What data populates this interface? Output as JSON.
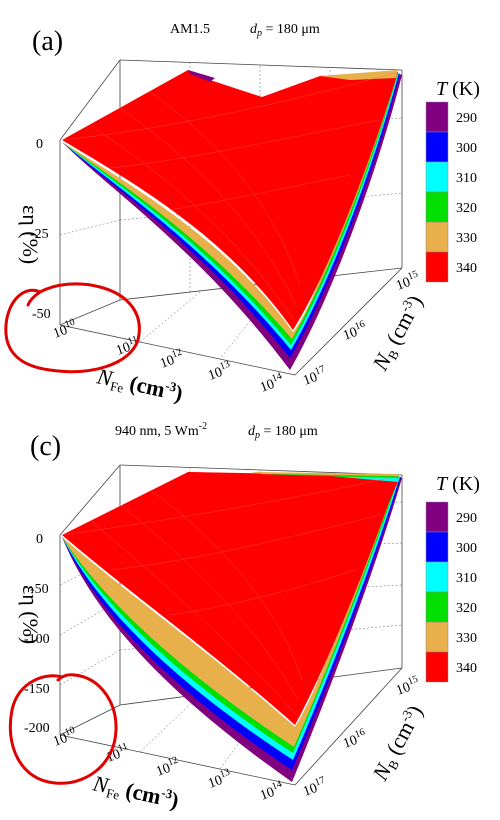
{
  "panels": [
    {
      "label": "(a)",
      "condition": "AM1.5",
      "thickness_symbol": "d",
      "thickness_sub": "p",
      "thickness_rest": " = 180 μm",
      "zlabel_parts": [
        "ε",
        "η",
        " (%)"
      ],
      "xlabel": {
        "main": "N",
        "sub": "Fe",
        "unit": " (cm",
        "exp": "-3",
        "close": ")"
      },
      "ylabel": {
        "main": "N",
        "sub": "B",
        "unit": " (cm",
        "exp": "-3",
        "close": ")"
      },
      "z_ticks": [
        "0",
        "-25",
        "-50"
      ],
      "x_ticks": [
        {
          "b": "10",
          "e": "10"
        },
        {
          "b": "10",
          "e": "11"
        },
        {
          "b": "10",
          "e": "12"
        },
        {
          "b": "10",
          "e": "13"
        },
        {
          "b": "10",
          "e": "14"
        }
      ],
      "y_ticks": [
        {
          "b": "10",
          "e": "15"
        },
        {
          "b": "10",
          "e": "16"
        },
        {
          "b": "10",
          "e": "17"
        }
      ],
      "legend": {
        "title_var": "T",
        "title_unit": " (K)",
        "entries": [
          "290",
          "300",
          "310",
          "320",
          "330",
          "340"
        ]
      }
    },
    {
      "label": "(c)",
      "condition_main": "940 nm, 5 Wm",
      "condition_exp": "-2",
      "thickness_symbol": "d",
      "thickness_sub": "p",
      "thickness_rest": " = 180 μm",
      "zlabel_parts": [
        "ε",
        "η",
        " (%)"
      ],
      "xlabel": {
        "main": "N",
        "sub": "Fe",
        "unit": " (cm",
        "exp": "-3",
        "close": ")"
      },
      "ylabel": {
        "main": "N",
        "sub": "B",
        "unit": " (cm",
        "exp": "-3",
        "close": ")"
      },
      "z_ticks": [
        "0",
        "-50",
        "-100",
        "-150",
        "-200"
      ],
      "x_ticks": [
        {
          "b": "10",
          "e": "10"
        },
        {
          "b": "10",
          "e": "11"
        },
        {
          "b": "10",
          "e": "12"
        },
        {
          "b": "10",
          "e": "13"
        },
        {
          "b": "10",
          "e": "14"
        }
      ],
      "y_ticks": [
        {
          "b": "10",
          "e": "15"
        },
        {
          "b": "10",
          "e": "16"
        },
        {
          "b": "10",
          "e": "17"
        }
      ],
      "legend": {
        "title_var": "T",
        "title_unit": " (K)",
        "entries": [
          "290",
          "300",
          "310",
          "320",
          "330",
          "340"
        ]
      }
    }
  ],
  "colors": {
    "290": "#800080",
    "300": "#0000ff",
    "310": "#00ffff",
    "320": "#00e000",
    "330": "#e8b04a",
    "340": "#ff0000",
    "annotation": "#e00000"
  },
  "chart_data": [
    {
      "type": "surface-3d",
      "x_axis": "N_Fe (cm^-3)",
      "x_range": [
        10000000000.0,
        100000000000000.0
      ],
      "x_scale": "log",
      "y_axis": "N_B (cm^-3)",
      "y_range": [
        1000000000000000.0,
        1e+17
      ],
      "y_scale": "log",
      "z_axis": "εη (%)",
      "z_ticks": [
        0,
        -25,
        -50
      ],
      "series": [
        {
          "name": "290",
          "min_value": -62
        },
        {
          "name": "300",
          "min_value": -60
        },
        {
          "name": "310",
          "min_value": -59
        },
        {
          "name": "320",
          "min_value": -58
        },
        {
          "name": "330",
          "min_value": -57
        },
        {
          "name": "340",
          "min_value": -55
        }
      ]
    },
    {
      "type": "surface-3d",
      "x_axis": "N_Fe (cm^-3)",
      "x_range": [
        10000000000.0,
        100000000000000.0
      ],
      "x_scale": "log",
      "y_axis": "N_B (cm^-3)",
      "y_range": [
        1000000000000000.0,
        1e+17
      ],
      "y_scale": "log",
      "z_axis": "εη (%)",
      "z_ticks": [
        0,
        -50,
        -100,
        -150,
        -200
      ],
      "series": [
        {
          "name": "290",
          "min_value": -205
        },
        {
          "name": "300",
          "min_value": -200
        },
        {
          "name": "310",
          "min_value": -195
        },
        {
          "name": "320",
          "min_value": -190
        },
        {
          "name": "330",
          "min_value": -186
        },
        {
          "name": "340",
          "min_value": -180
        }
      ]
    }
  ]
}
